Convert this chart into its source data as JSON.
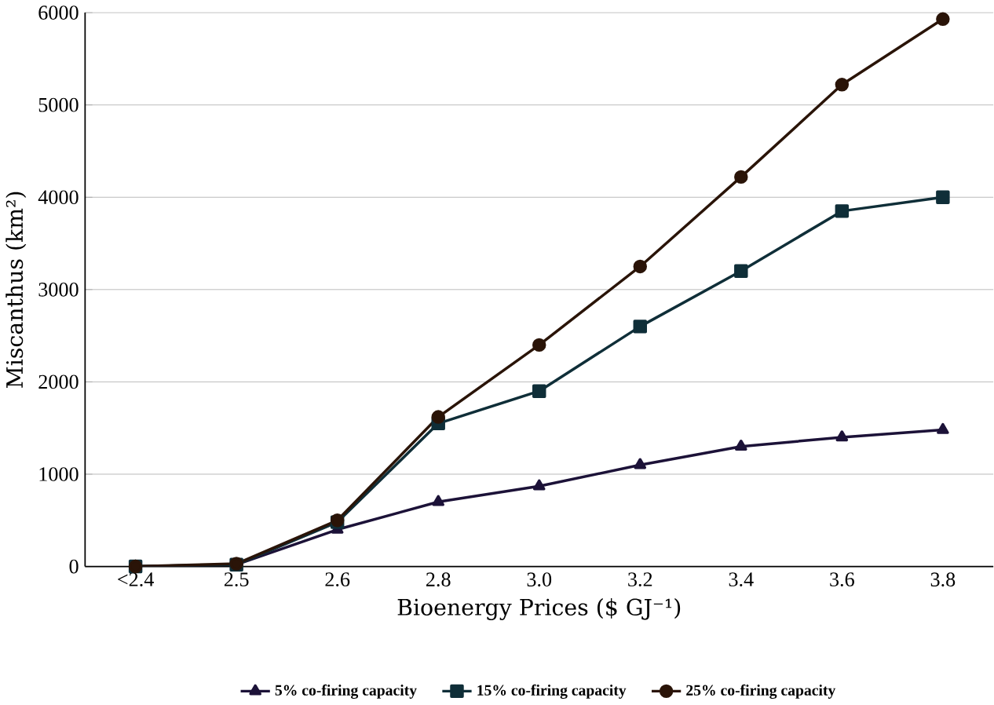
{
  "chart_data": {
    "type": "line",
    "xlabel": "Bioenergy Prices ($ GJ⁻¹)",
    "ylabel": "Miscanthus (km²)",
    "categories": [
      "<2.4",
      "2.5",
      "2.6",
      "2.8",
      "3.0",
      "3.2",
      "3.4",
      "3.6",
      "3.8"
    ],
    "series": [
      {
        "name": "5% co-firing capacity",
        "color": "#1c1238",
        "marker": "triangle",
        "values": [
          0,
          20,
          400,
          700,
          870,
          1100,
          1300,
          1400,
          1480
        ]
      },
      {
        "name": "15% co-firing capacity",
        "color": "#0f2e38",
        "marker": "square",
        "values": [
          0,
          20,
          480,
          1550,
          1900,
          2600,
          3200,
          3850,
          4000
        ]
      },
      {
        "name": "25% co-firing capacity",
        "color": "#2a1408",
        "marker": "circle",
        "values": [
          0,
          30,
          500,
          1620,
          2400,
          3250,
          4220,
          5220,
          5930
        ]
      }
    ],
    "ylim": [
      0,
      6000
    ],
    "yticks": [
      0,
      1000,
      2000,
      3000,
      4000,
      5000,
      6000
    ],
    "grid": "y",
    "legend": "bottom",
    "line_style": "solid"
  }
}
